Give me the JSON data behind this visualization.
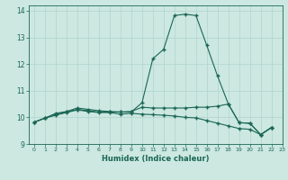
{
  "xlabel": "Humidex (Indice chaleur)",
  "xlim": [
    -0.5,
    23
  ],
  "ylim": [
    9,
    14.2
  ],
  "yticks": [
    9,
    10,
    11,
    12,
    13,
    14
  ],
  "xtick_labels": [
    "0",
    "1",
    "2",
    "3",
    "4",
    "5",
    "6",
    "7",
    "8",
    "9",
    "10",
    "11",
    "12",
    "13",
    "14",
    "15",
    "16",
    "17",
    "18",
    "19",
    "20",
    "21",
    "22",
    "23"
  ],
  "bg_color": "#cce8e0",
  "grid_color": "#b0d4cc",
  "line_color": "#1a6655",
  "series": [
    [
      9.82,
      9.97,
      10.15,
      10.22,
      10.35,
      10.3,
      10.25,
      10.22,
      10.2,
      10.2,
      10.55,
      12.2,
      12.55,
      13.82,
      13.87,
      13.82,
      12.7,
      11.55,
      10.5,
      9.8,
      9.78,
      9.35,
      9.62
    ],
    [
      9.82,
      9.97,
      10.12,
      10.2,
      10.3,
      10.25,
      10.2,
      10.2,
      10.2,
      10.22,
      10.38,
      10.35,
      10.35,
      10.35,
      10.35,
      10.38,
      10.38,
      10.42,
      10.5,
      9.8,
      9.78,
      9.35,
      9.62
    ],
    [
      9.82,
      9.97,
      10.08,
      10.18,
      10.28,
      10.22,
      10.18,
      10.18,
      10.12,
      10.15,
      10.12,
      10.1,
      10.08,
      10.05,
      10.0,
      9.98,
      9.88,
      9.78,
      9.68,
      9.58,
      9.55,
      9.35,
      9.62
    ]
  ]
}
